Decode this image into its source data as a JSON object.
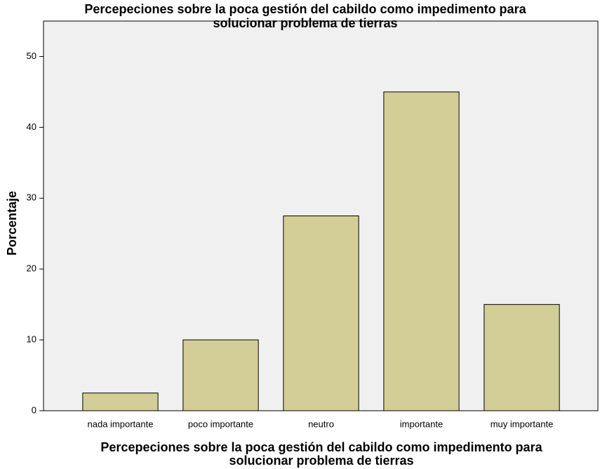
{
  "chart_data": {
    "type": "bar",
    "title": [
      "Percepeciones sobre la poca gestión del cabildo como impedimento para",
      "solucionar problema de tierras"
    ],
    "x_label": [
      "Percepeciones sobre la poca gestión del cabildo como impedimento para",
      "solucionar problema de tierras"
    ],
    "y_label": "Porcentaje",
    "categories": [
      "nada importante",
      "poco importante",
      "neutro",
      "importante",
      "muy importante"
    ],
    "values": [
      2.5,
      10,
      27.5,
      45,
      15
    ],
    "color": "#d3ce97",
    "ylim": [
      0,
      55
    ],
    "yticks": [
      0,
      10,
      20,
      30,
      40,
      50
    ],
    "grid": false
  }
}
